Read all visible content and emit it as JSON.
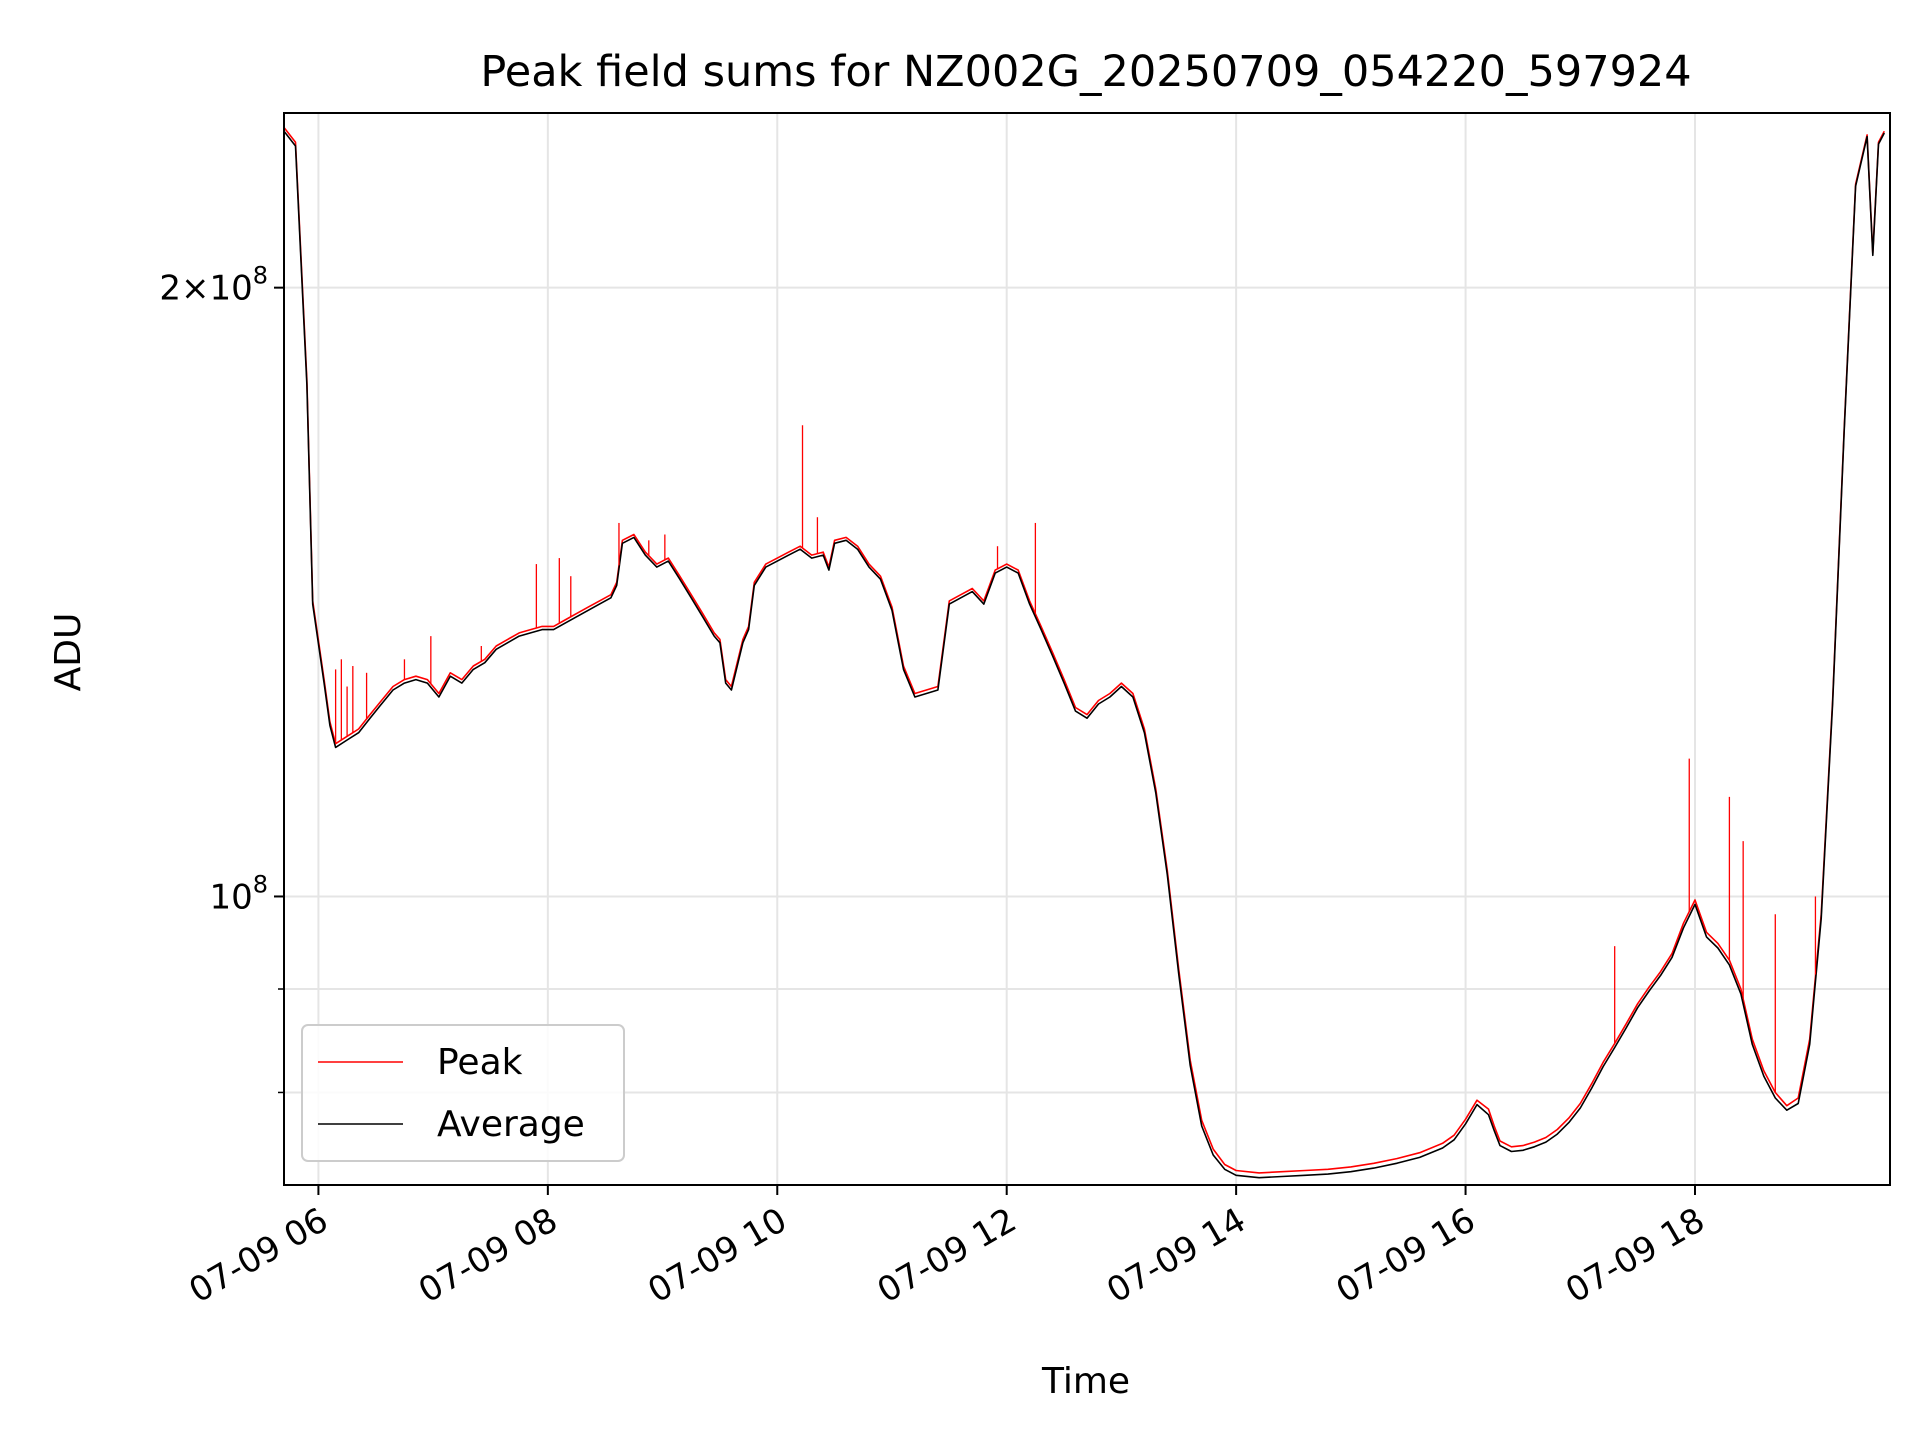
{
  "chart_data": {
    "type": "line",
    "title": "Peak field sums for NZ002G_20250709_054220_597924",
    "xlabel": "Time",
    "ylabel": "ADU",
    "x_ticks": [
      "07-09 06",
      "07-09 08",
      "07-09 10",
      "07-09 12",
      "07-09 14",
      "07-09 16",
      "07-09 18"
    ],
    "x_tick_hours": [
      6,
      8,
      10,
      12,
      14,
      16,
      18
    ],
    "xlim": [
      "2025-07-09 05:42",
      "2025-07-09 19:42"
    ],
    "xlim_hours": [
      5.7,
      19.7
    ],
    "y_scale": "log",
    "ylim": [
      72000000,
      244000000
    ],
    "y_ticks": [
      {
        "value": 200000000,
        "mantissa": "2",
        "base": "10",
        "exp": "8"
      },
      {
        "value": 100000000,
        "mantissa": "",
        "base": "10",
        "exp": "8"
      }
    ],
    "y_minor_ticks": [
      90000000,
      80000000
    ],
    "grid": true,
    "legend_position": "lower left",
    "series": [
      {
        "name": "Peak",
        "color": "#ff0000",
        "hour": [
          5.7,
          5.8,
          5.9,
          5.95,
          6.05,
          6.1,
          6.15,
          6.25,
          6.35,
          6.45,
          6.55,
          6.65,
          6.75,
          6.85,
          6.95,
          7.05,
          7.15,
          7.25,
          7.35,
          7.45,
          7.55,
          7.65,
          7.75,
          7.85,
          7.95,
          8.05,
          8.15,
          8.25,
          8.35,
          8.45,
          8.55,
          8.6,
          8.65,
          8.75,
          8.85,
          8.95,
          9.05,
          9.15,
          9.25,
          9.35,
          9.45,
          9.5,
          9.55,
          9.6,
          9.7,
          9.75,
          9.8,
          9.9,
          10.0,
          10.1,
          10.2,
          10.3,
          10.4,
          10.45,
          10.5,
          10.6,
          10.7,
          10.8,
          10.9,
          11.0,
          11.1,
          11.2,
          11.3,
          11.4,
          11.5,
          11.6,
          11.7,
          11.8,
          11.9,
          12.0,
          12.1,
          12.2,
          12.3,
          12.4,
          12.5,
          12.6,
          12.7,
          12.8,
          12.9,
          13.0,
          13.1,
          13.2,
          13.3,
          13.4,
          13.5,
          13.6,
          13.7,
          13.8,
          13.9,
          14.0,
          14.2,
          14.4,
          14.6,
          14.8,
          15.0,
          15.2,
          15.4,
          15.6,
          15.8,
          15.9,
          16.0,
          16.1,
          16.2,
          16.25,
          16.3,
          16.4,
          16.5,
          16.6,
          16.7,
          16.8,
          16.9,
          17.0,
          17.1,
          17.2,
          17.3,
          17.4,
          17.5,
          17.6,
          17.7,
          17.8,
          17.9,
          18.0,
          18.1,
          18.2,
          18.3,
          18.4,
          18.5,
          18.6,
          18.7,
          18.8,
          18.9,
          19.0,
          19.1,
          19.2,
          19.3,
          19.4,
          19.5,
          19.55,
          19.6,
          19.65,
          19.7
        ],
        "values": [
          240000000,
          236000000,
          180000000,
          140000000,
          128000000,
          122000000,
          119000000,
          120000000,
          121000000,
          123000000,
          125000000,
          127000000,
          128000000,
          128500000,
          128000000,
          126000000,
          129000000,
          128000000,
          130000000,
          131000000,
          133000000,
          134000000,
          135000000,
          135500000,
          136000000,
          136000000,
          137000000,
          138000000,
          139000000,
          140000000,
          141000000,
          143000000,
          150000000,
          151000000,
          148000000,
          146000000,
          147000000,
          144000000,
          141000000,
          138000000,
          135000000,
          134000000,
          128000000,
          127000000,
          134000000,
          136000000,
          143000000,
          146000000,
          147000000,
          148000000,
          149000000,
          147500000,
          148000000,
          145500000,
          150000000,
          150500000,
          149000000,
          146000000,
          144000000,
          139000000,
          130000000,
          126000000,
          126500000,
          127000000,
          140000000,
          141000000,
          142000000,
          140000000,
          145000000,
          146000000,
          145000000,
          140000000,
          136000000,
          132000000,
          128000000,
          124000000,
          123000000,
          125000000,
          126000000,
          127500000,
          126000000,
          121000000,
          113000000,
          103000000,
          92000000,
          83000000,
          77500000,
          75000000,
          73700000,
          73200000,
          73000000,
          73100000,
          73200000,
          73300000,
          73500000,
          73800000,
          74200000,
          74700000,
          75500000,
          76200000,
          77600000,
          79300000,
          78500000,
          77000000,
          75700000,
          75200000,
          75300000,
          75600000,
          76000000,
          76700000,
          77700000,
          79000000,
          80800000,
          82800000,
          84600000,
          86500000,
          88500000,
          90200000,
          91800000,
          93700000,
          97000000,
          99600000,
          96000000,
          94800000,
          93000000,
          90000000,
          85000000,
          82000000,
          80000000,
          78800000,
          79500000,
          85000000,
          98000000,
          125000000,
          170000000,
          225000000,
          238000000,
          208000000,
          236000000,
          239000000
        ]
      },
      {
        "name": "Average",
        "color": "#000000",
        "hour": [
          5.7,
          5.8,
          5.9,
          5.95,
          6.05,
          6.1,
          6.15,
          6.25,
          6.35,
          6.45,
          6.55,
          6.65,
          6.75,
          6.85,
          6.95,
          7.05,
          7.15,
          7.25,
          7.35,
          7.45,
          7.55,
          7.65,
          7.75,
          7.85,
          7.95,
          8.05,
          8.15,
          8.25,
          8.35,
          8.45,
          8.55,
          8.6,
          8.65,
          8.75,
          8.85,
          8.95,
          9.05,
          9.15,
          9.25,
          9.35,
          9.45,
          9.5,
          9.55,
          9.6,
          9.7,
          9.75,
          9.8,
          9.9,
          10.0,
          10.1,
          10.2,
          10.3,
          10.4,
          10.45,
          10.5,
          10.6,
          10.7,
          10.8,
          10.9,
          11.0,
          11.1,
          11.2,
          11.3,
          11.4,
          11.5,
          11.6,
          11.7,
          11.8,
          11.9,
          12.0,
          12.1,
          12.2,
          12.3,
          12.4,
          12.5,
          12.6,
          12.7,
          12.8,
          12.9,
          13.0,
          13.1,
          13.2,
          13.3,
          13.4,
          13.5,
          13.6,
          13.7,
          13.8,
          13.9,
          14.0,
          14.2,
          14.4,
          14.6,
          14.8,
          15.0,
          15.2,
          15.4,
          15.6,
          15.8,
          15.9,
          16.0,
          16.1,
          16.2,
          16.25,
          16.3,
          16.4,
          16.5,
          16.6,
          16.7,
          16.8,
          16.9,
          17.0,
          17.1,
          17.2,
          17.3,
          17.4,
          17.5,
          17.6,
          17.7,
          17.8,
          17.9,
          18.0,
          18.1,
          18.2,
          18.3,
          18.4,
          18.5,
          18.6,
          18.7,
          18.8,
          18.9,
          19.0,
          19.1,
          19.2,
          19.3,
          19.4,
          19.5,
          19.55,
          19.6,
          19.65,
          19.7
        ],
        "values": [
          239000000,
          235000000,
          179000000,
          139500000,
          127500000,
          121500000,
          118500000,
          119500000,
          120500000,
          122500000,
          124500000,
          126500000,
          127500000,
          128000000,
          127500000,
          125500000,
          128500000,
          127500000,
          129500000,
          130500000,
          132500000,
          133500000,
          134500000,
          135000000,
          135500000,
          135500000,
          136500000,
          137500000,
          138500000,
          139500000,
          140500000,
          142500000,
          149500000,
          150500000,
          147500000,
          145500000,
          146500000,
          143500000,
          140500000,
          137500000,
          134500000,
          133500000,
          127500000,
          126500000,
          133500000,
          135500000,
          142500000,
          145500000,
          146500000,
          147500000,
          148500000,
          147000000,
          147500000,
          145000000,
          149500000,
          150000000,
          148500000,
          145500000,
          143500000,
          138500000,
          129500000,
          125500000,
          126000000,
          126500000,
          139500000,
          140500000,
          141500000,
          139500000,
          144500000,
          145500000,
          144500000,
          139500000,
          135500000,
          131500000,
          127500000,
          123500000,
          122500000,
          124500000,
          125500000,
          127000000,
          125500000,
          120500000,
          112500000,
          102500000,
          91500000,
          82500000,
          77000000,
          74500000,
          73300000,
          72800000,
          72600000,
          72700000,
          72800000,
          72900000,
          73100000,
          73400000,
          73800000,
          74300000,
          75100000,
          75800000,
          77200000,
          78900000,
          78000000,
          76600000,
          75300000,
          74800000,
          74900000,
          75200000,
          75600000,
          76300000,
          77300000,
          78600000,
          80400000,
          82400000,
          84200000,
          86100000,
          88100000,
          89800000,
          91400000,
          93300000,
          96500000,
          99100000,
          95500000,
          94300000,
          92500000,
          89500000,
          84500000,
          81500000,
          79500000,
          78400000,
          79000000,
          84500000,
          97500000,
          124500000,
          169500000,
          224500000,
          237500000,
          207500000,
          235500000,
          238500000
        ]
      }
    ],
    "peak_spikes": {
      "hour": [
        6.15,
        6.2,
        6.25,
        6.3,
        6.42,
        6.75,
        6.98,
        7.42,
        7.9,
        8.1,
        8.2,
        8.62,
        8.88,
        9.02,
        10.22,
        10.35,
        11.92,
        12.25,
        17.3,
        17.95,
        18.3,
        18.42,
        18.7,
        19.05
      ],
      "values": [
        129500000,
        131000000,
        127000000,
        130000000,
        129000000,
        131000000,
        134500000,
        133000000,
        146000000,
        147000000,
        144000000,
        153000000,
        150000000,
        151000000,
        171000000,
        154000000,
        149000000,
        153000000,
        94500000,
        117000000,
        112000000,
        106500000,
        98000000,
        100000000
      ]
    }
  }
}
